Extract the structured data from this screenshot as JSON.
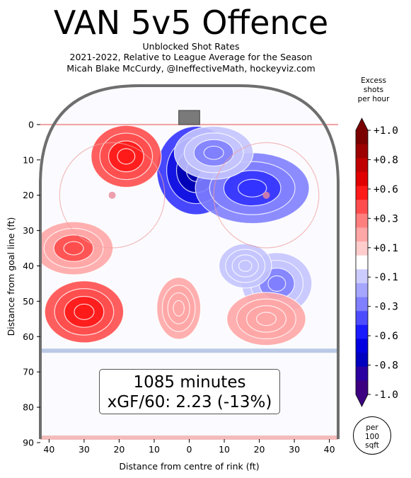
{
  "header": {
    "title": "VAN 5v5 Offence",
    "subtitle_1": "Unblocked Shot Rates",
    "subtitle_2": "2021-2022, Relative to League Average for the Season",
    "subtitle_3": "Micah Blake McCurdy, @IneffectiveMath, hockeyviz.com"
  },
  "info": {
    "minutes": "1085 minutes",
    "xgf": "xGF/60: 2.23 (-13%)"
  },
  "colorbar": {
    "title_1": "Excess",
    "title_2": "shots",
    "title_3": "per hour",
    "ticks": [
      "+1.0",
      "+0.8",
      "+0.6",
      "+0.3",
      "+0.1",
      "-0.1",
      "-0.3",
      "-0.6",
      "-0.8",
      "-1.0"
    ],
    "levels": [
      "#7a0000",
      "#9c0000",
      "#c00000",
      "#e00000",
      "#ff1a1a",
      "#ff4d4d",
      "#ff7f7f",
      "#ffa6a6",
      "#ffcccc",
      "#ffffff",
      "#ccccff",
      "#a6a6ff",
      "#7f7fff",
      "#4d4dff",
      "#1a1aff",
      "#0000e0",
      "#0000c0",
      "#2a00a0",
      "#3c0080"
    ],
    "unit_1": "per",
    "unit_2": "100",
    "unit_3": "sqft"
  },
  "colors": {
    "positive": "#ff4d4d",
    "negative": "#3333ff",
    "boards": "#6e6e6e",
    "goal_line": "#f0a0a0",
    "blue_line": "#a6b8dd"
  },
  "chart_data": {
    "type": "heatmap",
    "xlabel": "Distance from centre of rink (ft)",
    "ylabel": "Distance from goal line (ft)",
    "xlim": [
      -42.5,
      42.5
    ],
    "ylim": [
      89,
      -11
    ],
    "xticks": [
      -40,
      -30,
      -20,
      -10,
      0,
      10,
      20,
      30,
      40
    ],
    "xtick_labels": [
      "40",
      "30",
      "20",
      "10",
      "0",
      "10",
      "20",
      "30",
      "40"
    ],
    "yticks": [
      0,
      10,
      20,
      30,
      40,
      50,
      60,
      70,
      80,
      90
    ],
    "ytick_labels": [
      "0",
      "10",
      "20",
      "30",
      "40",
      "50",
      "60",
      "70",
      "80",
      "90"
    ],
    "color_range": [
      -1.0,
      1.0
    ],
    "regions": [
      {
        "x": 2,
        "y": 13,
        "rx": 9,
        "ry": 10,
        "value": -1.0
      },
      {
        "x": 18,
        "y": 18,
        "rx": 13,
        "ry": 8,
        "value": -0.6
      },
      {
        "x": 7,
        "y": 8,
        "rx": 9,
        "ry": 6,
        "value": -0.3
      },
      {
        "x": 25,
        "y": 45,
        "rx": 8,
        "ry": 7,
        "value": -0.3
      },
      {
        "x": 16,
        "y": 40,
        "rx": 6,
        "ry": 5,
        "value": -0.1
      },
      {
        "x": -18,
        "y": 9,
        "rx": 8,
        "ry": 7,
        "value": 0.6
      },
      {
        "x": -33,
        "y": 35,
        "rx": 9,
        "ry": 6,
        "value": 0.3
      },
      {
        "x": -30,
        "y": 53,
        "rx": 9,
        "ry": 7,
        "value": 0.6
      },
      {
        "x": -3,
        "y": 52,
        "rx": 5,
        "ry": 7,
        "value": 0.1
      },
      {
        "x": 22,
        "y": 55,
        "rx": 9,
        "ry": 6,
        "value": 0.1
      }
    ]
  }
}
